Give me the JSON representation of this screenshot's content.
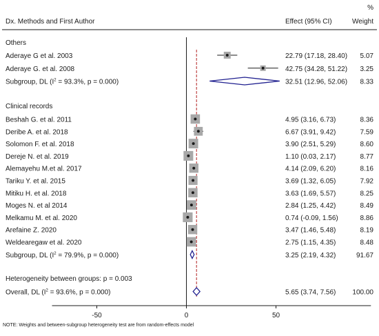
{
  "chart_data": {
    "type": "forest",
    "headers": {
      "study": "Dx. Methods and First Author",
      "effect": "Effect (95% CI)",
      "weight_top": "%",
      "weight": "Weight"
    },
    "xlim": [
      -75,
      103
    ],
    "xticks": [
      -50,
      0,
      50
    ],
    "reference_line": 0,
    "overall_line": 5.65,
    "groups": [
      {
        "name": "Others",
        "studies": [
          {
            "label": "Aderaye G et al. 2003",
            "effect": 22.79,
            "lo": 17.18,
            "hi": 28.4,
            "ci_text": "22.79 (17.18, 28.40)",
            "weight": 5.07,
            "weight_text": "5.07"
          },
          {
            "label": "Aderaye G. et al. 2008",
            "effect": 42.75,
            "lo": 34.28,
            "hi": 51.22,
            "ci_text": "42.75 (34.28, 51.22)",
            "weight": 3.25,
            "weight_text": "3.25"
          }
        ],
        "subtotal": {
          "label_pre": "Subgroup, DL (I",
          "label_sup": "2",
          "label_post": " = 93.3%, p = 0.000)",
          "effect": 32.51,
          "lo": 12.96,
          "hi": 52.06,
          "ci_text": "32.51 (12.96, 52.06)",
          "weight_text": "8.33"
        }
      },
      {
        "name": "Clinical records",
        "studies": [
          {
            "label": "Beshah G. et al. 2011",
            "effect": 4.95,
            "lo": 3.16,
            "hi": 6.73,
            "ci_text": "4.95 (3.16, 6.73)",
            "weight": 8.36,
            "weight_text": "8.36"
          },
          {
            "label": "Deribe A.  et al. 2018",
            "effect": 6.67,
            "lo": 3.91,
            "hi": 9.42,
            "ci_text": "6.67 (3.91, 9.42)",
            "weight": 7.59,
            "weight_text": "7.59"
          },
          {
            "label": "Solomon F. et al. 2018",
            "effect": 3.9,
            "lo": 2.51,
            "hi": 5.29,
            "ci_text": "3.90 (2.51, 5.29)",
            "weight": 8.6,
            "weight_text": "8.60"
          },
          {
            "label": "Dereje N. et al. 2019",
            "effect": 1.1,
            "lo": 0.03,
            "hi": 2.17,
            "ci_text": "1.10 (0.03, 2.17)",
            "weight": 8.77,
            "weight_text": "8.77"
          },
          {
            "label": "Alemayehu M.et al. 2017",
            "effect": 4.14,
            "lo": 2.09,
            "hi": 6.2,
            "ci_text": "4.14 (2.09, 6.20)",
            "weight": 8.16,
            "weight_text": "8.16"
          },
          {
            "label": "Tariku Y. et al. 2015",
            "effect": 3.69,
            "lo": 1.32,
            "hi": 6.05,
            "ci_text": "3.69 (1.32, 6.05)",
            "weight": 7.92,
            "weight_text": "7.92"
          },
          {
            "label": "Mitiku H. et al. 2018",
            "effect": 3.63,
            "lo": 1.69,
            "hi": 5.57,
            "ci_text": "3.63 (1.69, 5.57)",
            "weight": 8.25,
            "weight_text": "8.25"
          },
          {
            "label": "Moges N. et al 2014",
            "effect": 2.84,
            "lo": 1.25,
            "hi": 4.42,
            "ci_text": "2.84 (1.25, 4.42)",
            "weight": 8.49,
            "weight_text": "8.49"
          },
          {
            "label": "Melkamu M. et al. 2020",
            "effect": 0.74,
            "lo": -0.09,
            "hi": 1.56,
            "ci_text": "0.74 (-0.09, 1.56)",
            "weight": 8.86,
            "weight_text": "8.86"
          },
          {
            "label": "Arefaine Z. 2020",
            "effect": 3.47,
            "lo": 1.46,
            "hi": 5.48,
            "ci_text": "3.47 (1.46, 5.48)",
            "weight": 8.19,
            "weight_text": "8.19"
          },
          {
            "label": "Weldearegaw et al. 2020",
            "effect": 2.75,
            "lo": 1.15,
            "hi": 4.35,
            "ci_text": "2.75 (1.15, 4.35)",
            "weight": 8.48,
            "weight_text": "8.48"
          }
        ],
        "subtotal": {
          "label_pre": "Subgroup, DL (I",
          "label_sup": "2",
          "label_post": " = 79.9%, p = 0.000)",
          "effect": 3.25,
          "lo": 2.19,
          "hi": 4.32,
          "ci_text": "3.25 (2.19, 4.32)",
          "weight_text": "91.67"
        }
      }
    ],
    "heterogeneity_text": "Heterogeneity between groups: p = 0.003",
    "overall": {
      "label_pre": "Overall, DL (I",
      "label_sup": "2",
      "label_post": " = 93.6%, p = 0.000)",
      "effect": 5.65,
      "lo": 3.74,
      "hi": 7.56,
      "ci_text": "5.65 (3.74, 7.56)",
      "weight_text": "100.00"
    },
    "note": "NOTE: Weights and between-subgroup heterogeneity test are from random-effects model",
    "colors": {
      "text": "#1a1a1a",
      "diamond": "#1f1f8f",
      "overall_line": "#b22222",
      "box": "#a8a8a8",
      "axis": "#1a1a1a"
    }
  }
}
